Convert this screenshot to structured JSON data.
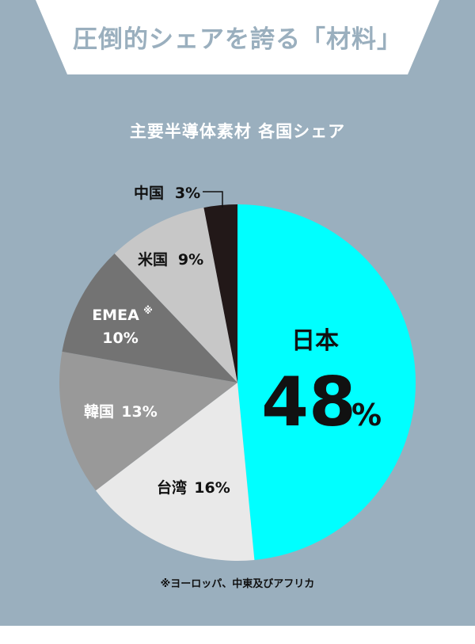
{
  "header": {
    "title": "圧倒的シェアを誇る「材料」"
  },
  "chart_data": {
    "type": "pie",
    "title": "主要半導体素材 各国シェア",
    "slices": [
      {
        "label": "日本",
        "value": 48,
        "value_text": "48",
        "unit": "%",
        "color": "#00ffff"
      },
      {
        "label": "台湾",
        "value": 16,
        "value_text": "16%",
        "color": "#e9e9e9"
      },
      {
        "label": "韓国",
        "value": 13,
        "value_text": "13%",
        "color": "#999999"
      },
      {
        "label": "EMEA",
        "note_mark": "※",
        "value": 10,
        "value_text": "10%",
        "color": "#737373"
      },
      {
        "label": "米国",
        "value": 9,
        "value_text": "9%",
        "color": "#c7c7c7"
      },
      {
        "label": "中国",
        "value": 3,
        "value_text": "3%",
        "color": "#221818"
      }
    ],
    "start_angle": "12 o'clock",
    "direction": "clockwise",
    "footnote": "※ヨーロッパ、中東及びアフリカ"
  },
  "colors": {
    "background": "#9aafbe",
    "banner": "#ffffff",
    "highlight": "#00ffff"
  }
}
